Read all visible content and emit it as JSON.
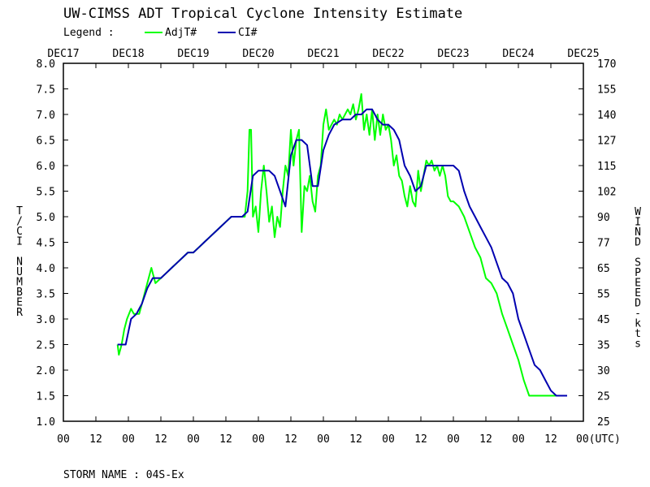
{
  "chart_data": {
    "type": "line",
    "title": "UW-CIMSS ADT Tropical Cyclone Intensity Estimate",
    "legend": {
      "label": "Legend :",
      "placement": "top-left",
      "items": [
        {
          "name": "AdjT#",
          "color": "#00ff00"
        },
        {
          "name": "CI#",
          "color": "#0000b0"
        }
      ]
    },
    "top_axis_labels": [
      "DEC17",
      "DEC18",
      "DEC19",
      "DEC20",
      "DEC21",
      "DEC22",
      "DEC23",
      "DEC24",
      "DEC25"
    ],
    "x_tick_labels": [
      "00",
      "12",
      "00",
      "12",
      "00",
      "12",
      "00",
      "12",
      "00",
      "12",
      "00",
      "12",
      "00",
      "12",
      "00",
      "12",
      "00(UTC)"
    ],
    "xlim_hours": [
      0,
      192
    ],
    "ylabel_left": "T/CI NUMBER",
    "ylabel_right": "WIND SPEED-kts",
    "ylim": [
      1.0,
      8.0
    ],
    "y_ticks_left": [
      "1.0",
      "1.5",
      "2.0",
      "2.5",
      "3.0",
      "3.5",
      "4.0",
      "4.5",
      "5.0",
      "5.5",
      "6.0",
      "6.5",
      "7.0",
      "7.5",
      "8.0"
    ],
    "y_ticks_right": [
      "25",
      "25",
      "30",
      "35",
      "45",
      "55",
      "65",
      "77",
      "90",
      "102",
      "115",
      "127",
      "140",
      "155",
      "170"
    ],
    "grid": false,
    "series": [
      {
        "name": "AdjT#",
        "color": "#00ff00",
        "points": [
          [
            20,
            2.5
          ],
          [
            20.5,
            2.3
          ],
          [
            21.5,
            2.5
          ],
          [
            22.5,
            2.8
          ],
          [
            23.5,
            3.0
          ],
          [
            25,
            3.2
          ],
          [
            26,
            3.1
          ],
          [
            28,
            3.1
          ],
          [
            29,
            3.3
          ],
          [
            30,
            3.5
          ],
          [
            31,
            3.7
          ],
          [
            32.5,
            4.0
          ],
          [
            34,
            3.7
          ],
          [
            36,
            3.8
          ],
          [
            38,
            3.9
          ],
          [
            40,
            4.0
          ],
          [
            42,
            4.1
          ],
          [
            44,
            4.2
          ],
          [
            46,
            4.3
          ],
          [
            48,
            4.3
          ],
          [
            50,
            4.4
          ],
          [
            52,
            4.5
          ],
          [
            54,
            4.6
          ],
          [
            56,
            4.7
          ],
          [
            58,
            4.8
          ],
          [
            60,
            4.9
          ],
          [
            62,
            5.0
          ],
          [
            64,
            5.0
          ],
          [
            66,
            5.0
          ],
          [
            67,
            5.0
          ],
          [
            68,
            5.5
          ],
          [
            68.7,
            6.7
          ],
          [
            69.3,
            6.7
          ],
          [
            70,
            5.0
          ],
          [
            71,
            5.2
          ],
          [
            72,
            4.7
          ],
          [
            73,
            5.5
          ],
          [
            74,
            6.0
          ],
          [
            75,
            5.5
          ],
          [
            76,
            4.9
          ],
          [
            77,
            5.2
          ],
          [
            78,
            4.6
          ],
          [
            79,
            5.0
          ],
          [
            80,
            4.8
          ],
          [
            81,
            5.5
          ],
          [
            82,
            6.0
          ],
          [
            83,
            5.8
          ],
          [
            84,
            6.7
          ],
          [
            85,
            6.0
          ],
          [
            86,
            6.5
          ],
          [
            87,
            6.7
          ],
          [
            88,
            4.7
          ],
          [
            89,
            5.6
          ],
          [
            90,
            5.5
          ],
          [
            91,
            5.8
          ],
          [
            92,
            5.3
          ],
          [
            93,
            5.1
          ],
          [
            94,
            5.8
          ],
          [
            95,
            6.0
          ],
          [
            96,
            6.8
          ],
          [
            97,
            7.1
          ],
          [
            98,
            6.7
          ],
          [
            99,
            6.8
          ],
          [
            100,
            6.9
          ],
          [
            101,
            6.8
          ],
          [
            102,
            7.0
          ],
          [
            103,
            6.9
          ],
          [
            104,
            7.0
          ],
          [
            105,
            7.1
          ],
          [
            106,
            7.0
          ],
          [
            107,
            7.2
          ],
          [
            108,
            6.9
          ],
          [
            109,
            7.1
          ],
          [
            110,
            7.4
          ],
          [
            111,
            6.7
          ],
          [
            112,
            7.0
          ],
          [
            113,
            6.6
          ],
          [
            114,
            7.1
          ],
          [
            115,
            6.5
          ],
          [
            116,
            7.0
          ],
          [
            117,
            6.6
          ],
          [
            118,
            7.0
          ],
          [
            119,
            6.7
          ],
          [
            120,
            6.8
          ],
          [
            121,
            6.5
          ],
          [
            122,
            6.0
          ],
          [
            123,
            6.2
          ],
          [
            124,
            5.8
          ],
          [
            125,
            5.7
          ],
          [
            126,
            5.4
          ],
          [
            127,
            5.2
          ],
          [
            128,
            5.6
          ],
          [
            129,
            5.3
          ],
          [
            130,
            5.2
          ],
          [
            131,
            5.9
          ],
          [
            132,
            5.5
          ],
          [
            133,
            5.8
          ],
          [
            134,
            6.1
          ],
          [
            135,
            6.0
          ],
          [
            136,
            6.1
          ],
          [
            137,
            5.9
          ],
          [
            138,
            6.0
          ],
          [
            139,
            5.8
          ],
          [
            140,
            6.0
          ],
          [
            141,
            5.8
          ],
          [
            142,
            5.4
          ],
          [
            143,
            5.3
          ],
          [
            144,
            5.3
          ],
          [
            146,
            5.2
          ],
          [
            148,
            5.0
          ],
          [
            150,
            4.7
          ],
          [
            152,
            4.4
          ],
          [
            154,
            4.2
          ],
          [
            156,
            3.8
          ],
          [
            158,
            3.7
          ],
          [
            160,
            3.5
          ],
          [
            162,
            3.1
          ],
          [
            164,
            2.8
          ],
          [
            166,
            2.5
          ],
          [
            168,
            2.2
          ],
          [
            170,
            1.8
          ],
          [
            172,
            1.5
          ],
          [
            174,
            1.5
          ],
          [
            176,
            1.5
          ],
          [
            178,
            1.5
          ],
          [
            180,
            1.5
          ],
          [
            182,
            1.5
          ],
          [
            184,
            1.5
          ],
          [
            186,
            1.5
          ]
        ]
      },
      {
        "name": "CI#",
        "color": "#0000b0",
        "points": [
          [
            20,
            2.5
          ],
          [
            23,
            2.5
          ],
          [
            25,
            3.0
          ],
          [
            27,
            3.1
          ],
          [
            29,
            3.3
          ],
          [
            31,
            3.6
          ],
          [
            33,
            3.8
          ],
          [
            36,
            3.8
          ],
          [
            38,
            3.9
          ],
          [
            40,
            4.0
          ],
          [
            42,
            4.1
          ],
          [
            44,
            4.2
          ],
          [
            46,
            4.3
          ],
          [
            48,
            4.3
          ],
          [
            50,
            4.4
          ],
          [
            52,
            4.5
          ],
          [
            54,
            4.6
          ],
          [
            56,
            4.7
          ],
          [
            58,
            4.8
          ],
          [
            60,
            4.9
          ],
          [
            62,
            5.0
          ],
          [
            66,
            5.0
          ],
          [
            68,
            5.1
          ],
          [
            70,
            5.8
          ],
          [
            72,
            5.9
          ],
          [
            76,
            5.9
          ],
          [
            78,
            5.8
          ],
          [
            80,
            5.5
          ],
          [
            82,
            5.2
          ],
          [
            84,
            6.2
          ],
          [
            86,
            6.5
          ],
          [
            88,
            6.5
          ],
          [
            90,
            6.4
          ],
          [
            92,
            5.6
          ],
          [
            94,
            5.6
          ],
          [
            96,
            6.3
          ],
          [
            98,
            6.6
          ],
          [
            100,
            6.8
          ],
          [
            103,
            6.9
          ],
          [
            106,
            6.9
          ],
          [
            108,
            7.0
          ],
          [
            110,
            7.0
          ],
          [
            112,
            7.1
          ],
          [
            114,
            7.1
          ],
          [
            116,
            6.9
          ],
          [
            118,
            6.8
          ],
          [
            120,
            6.8
          ],
          [
            122,
            6.7
          ],
          [
            124,
            6.5
          ],
          [
            126,
            6.0
          ],
          [
            128,
            5.8
          ],
          [
            130,
            5.5
          ],
          [
            132,
            5.6
          ],
          [
            134,
            6.0
          ],
          [
            136,
            6.0
          ],
          [
            138,
            6.0
          ],
          [
            140,
            6.0
          ],
          [
            142,
            6.0
          ],
          [
            144,
            6.0
          ],
          [
            146,
            5.9
          ],
          [
            148,
            5.5
          ],
          [
            150,
            5.2
          ],
          [
            152,
            5.0
          ],
          [
            154,
            4.8
          ],
          [
            156,
            4.6
          ],
          [
            158,
            4.4
          ],
          [
            160,
            4.1
          ],
          [
            162,
            3.8
          ],
          [
            164,
            3.7
          ],
          [
            166,
            3.5
          ],
          [
            168,
            3.0
          ],
          [
            170,
            2.7
          ],
          [
            172,
            2.4
          ],
          [
            174,
            2.1
          ],
          [
            176,
            2.0
          ],
          [
            178,
            1.8
          ],
          [
            180,
            1.6
          ],
          [
            182,
            1.5
          ],
          [
            186,
            1.5
          ]
        ]
      }
    ]
  },
  "footer": {
    "storm_name": "STORM NAME : 04S-Ex"
  }
}
